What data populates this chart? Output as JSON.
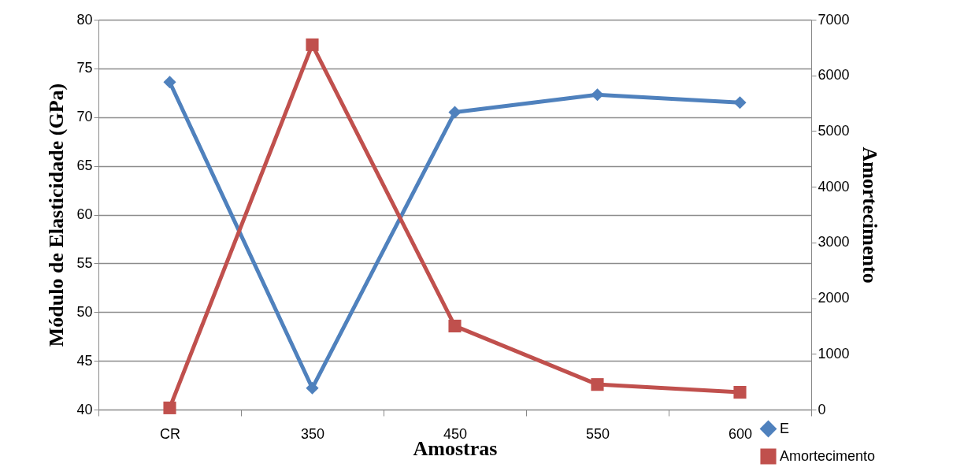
{
  "chart_data": {
    "type": "line",
    "xlabel": "Amostras",
    "ylabel": "Módulo de Elasticidade (GPa)",
    "y2label": "Amortecimento",
    "categories": [
      "CR",
      "350",
      "450",
      "550",
      "600"
    ],
    "series": [
      {
        "name": "E",
        "color": "#4f81bd",
        "marker": "diamond",
        "values": [
          73.6,
          42.2,
          70.5,
          72.3,
          71.5
        ]
      },
      {
        "name": "Amortecimento",
        "color": "#c0504d",
        "marker": "square",
        "axis": "y2",
        "values": [
          30,
          6550,
          1500,
          450,
          310
        ]
      }
    ],
    "ylim": [
      40,
      80
    ],
    "yticks": [
      40,
      45,
      50,
      55,
      60,
      65,
      70,
      75,
      80
    ],
    "y2lim": [
      0,
      7000
    ],
    "y2ticks": [
      0,
      1000,
      2000,
      3000,
      4000,
      5000,
      6000,
      7000
    ],
    "grid": "y",
    "legend": "bottom right",
    "line_style": "solid"
  }
}
